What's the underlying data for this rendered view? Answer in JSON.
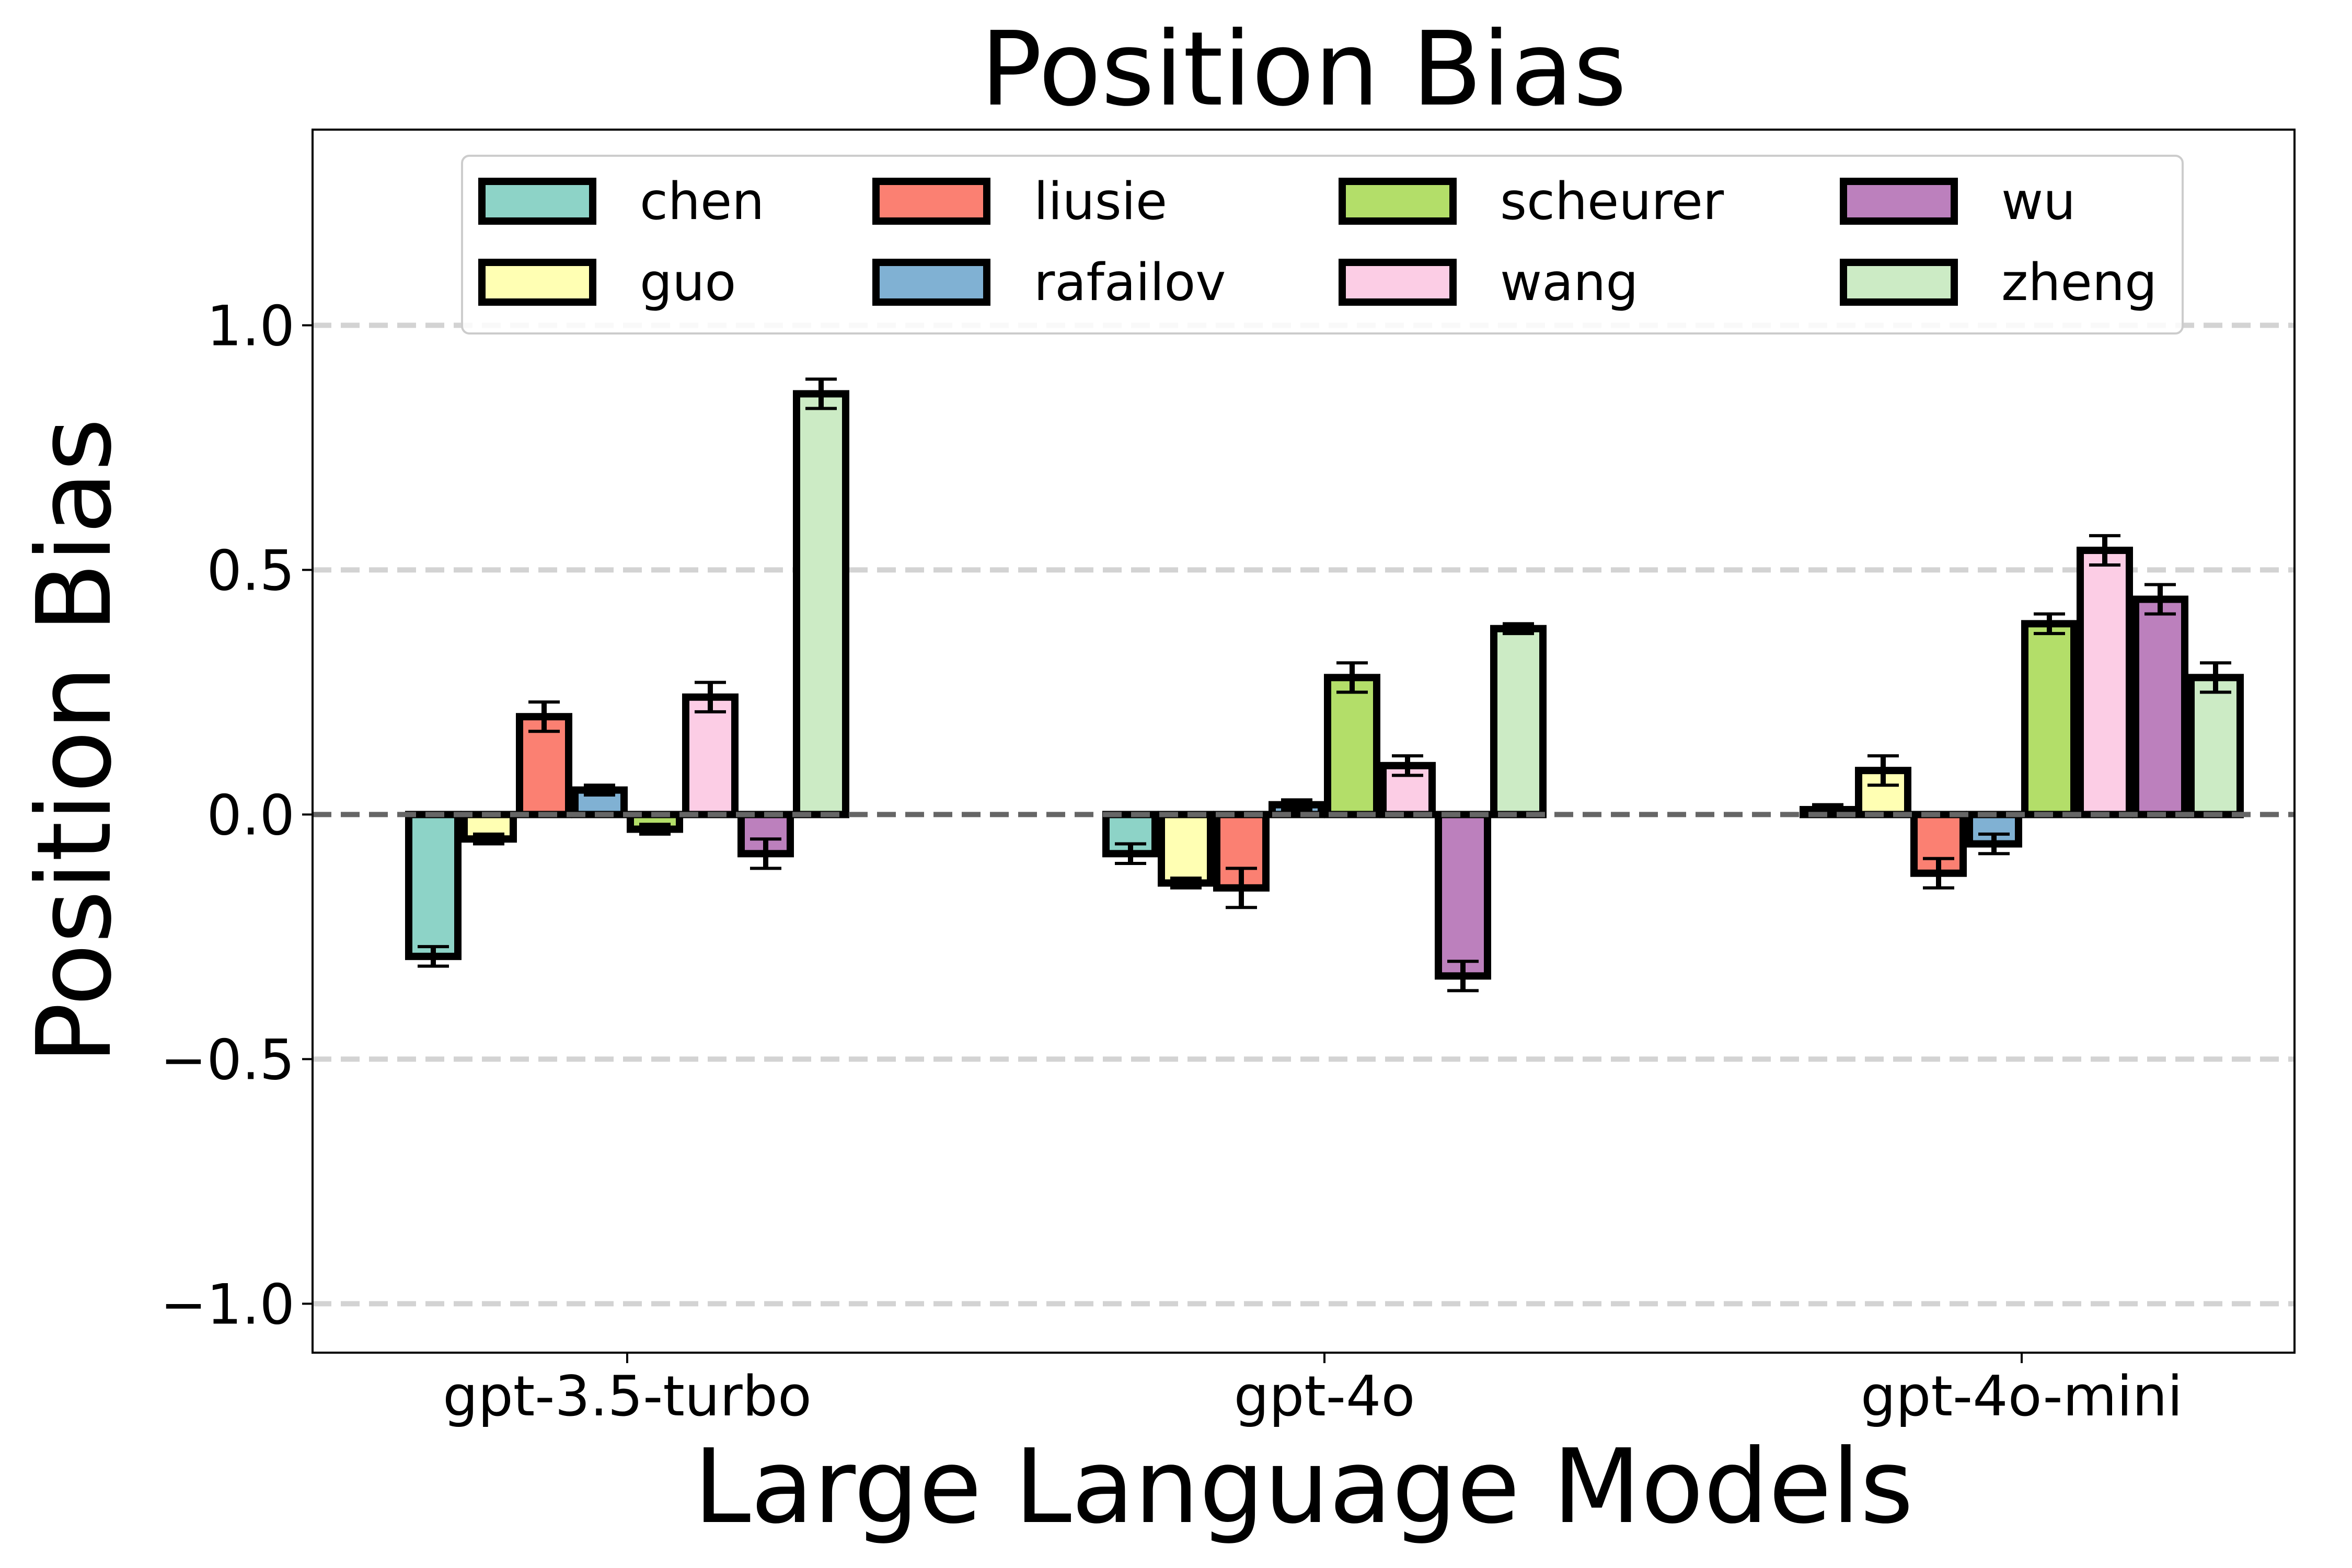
{
  "chart_data": {
    "type": "bar",
    "title": "Position Bias",
    "xlabel": "Large Language Models",
    "ylabel": "Position Bias",
    "ylim": [
      -1.1,
      1.4
    ],
    "yticks": [
      -1.0,
      -0.5,
      0.0,
      0.5,
      1.0
    ],
    "ytick_labels": [
      "−1.0",
      "−0.5",
      "0.0",
      "0.5",
      "1.0"
    ],
    "grid": "horizontal dashed",
    "legend_placement": "top-center",
    "legend_columns": 4,
    "categories": [
      "gpt-3.5-turbo",
      "gpt-4o",
      "gpt-4o-mini"
    ],
    "series": [
      {
        "name": "chen",
        "color": "#8dd3c7",
        "values": [
          -0.29,
          -0.08,
          0.01
        ],
        "errors": [
          0.02,
          0.02,
          0.01
        ]
      },
      {
        "name": "guo",
        "color": "#ffffb3",
        "values": [
          -0.05,
          -0.14,
          0.09
        ],
        "errors": [
          0.01,
          0.01,
          0.03
        ]
      },
      {
        "name": "liusie",
        "color": "#fb8072",
        "values": [
          0.2,
          -0.15,
          -0.12
        ],
        "errors": [
          0.03,
          0.04,
          0.03
        ]
      },
      {
        "name": "rafailov",
        "color": "#80b1d3",
        "values": [
          0.05,
          0.02,
          -0.06
        ],
        "errors": [
          0.01,
          0.01,
          0.02
        ]
      },
      {
        "name": "scheurer",
        "color": "#b3de69",
        "values": [
          -0.03,
          0.28,
          0.39
        ],
        "errors": [
          0.01,
          0.03,
          0.02
        ]
      },
      {
        "name": "wang",
        "color": "#fccde5",
        "values": [
          0.24,
          0.1,
          0.54
        ],
        "errors": [
          0.03,
          0.02,
          0.03
        ]
      },
      {
        "name": "wu",
        "color": "#bc80bd",
        "values": [
          -0.08,
          -0.33,
          0.44
        ],
        "errors": [
          0.03,
          0.03,
          0.03
        ]
      },
      {
        "name": "zheng",
        "color": "#ccebc5",
        "values": [
          0.86,
          0.38,
          0.28
        ],
        "errors": [
          0.03,
          0.01,
          0.03
        ]
      }
    ]
  }
}
